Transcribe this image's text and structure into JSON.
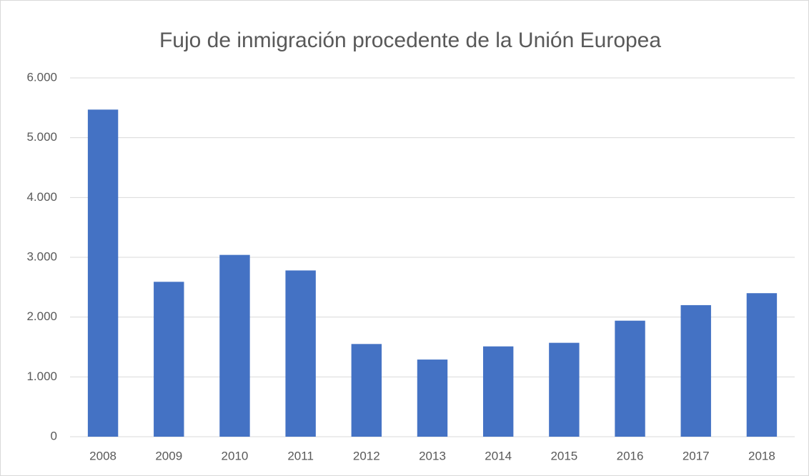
{
  "chart_data": {
    "type": "bar",
    "title": "Fujo de inmigración procedente de la Unión Europea",
    "categories": [
      "2008",
      "2009",
      "2010",
      "2011",
      "2012",
      "2013",
      "2014",
      "2015",
      "2016",
      "2017",
      "2018"
    ],
    "values": [
      5470,
      2590,
      3040,
      2780,
      1550,
      1290,
      1510,
      1570,
      1940,
      2200,
      2400
    ],
    "color": "#4472c4",
    "ylim": [
      0,
      6000
    ],
    "yticks": [
      0,
      {
        "value": 1000,
        "label": "1.000"
      },
      {
        "value": 2000,
        "label": "2.000"
      },
      {
        "value": 3000,
        "label": "3.000"
      },
      {
        "value": 4000,
        "label": "4.000"
      },
      {
        "value": 5000,
        "label": "5.000"
      },
      {
        "value": 6000,
        "label": "6.000"
      }
    ],
    "grid": true
  }
}
